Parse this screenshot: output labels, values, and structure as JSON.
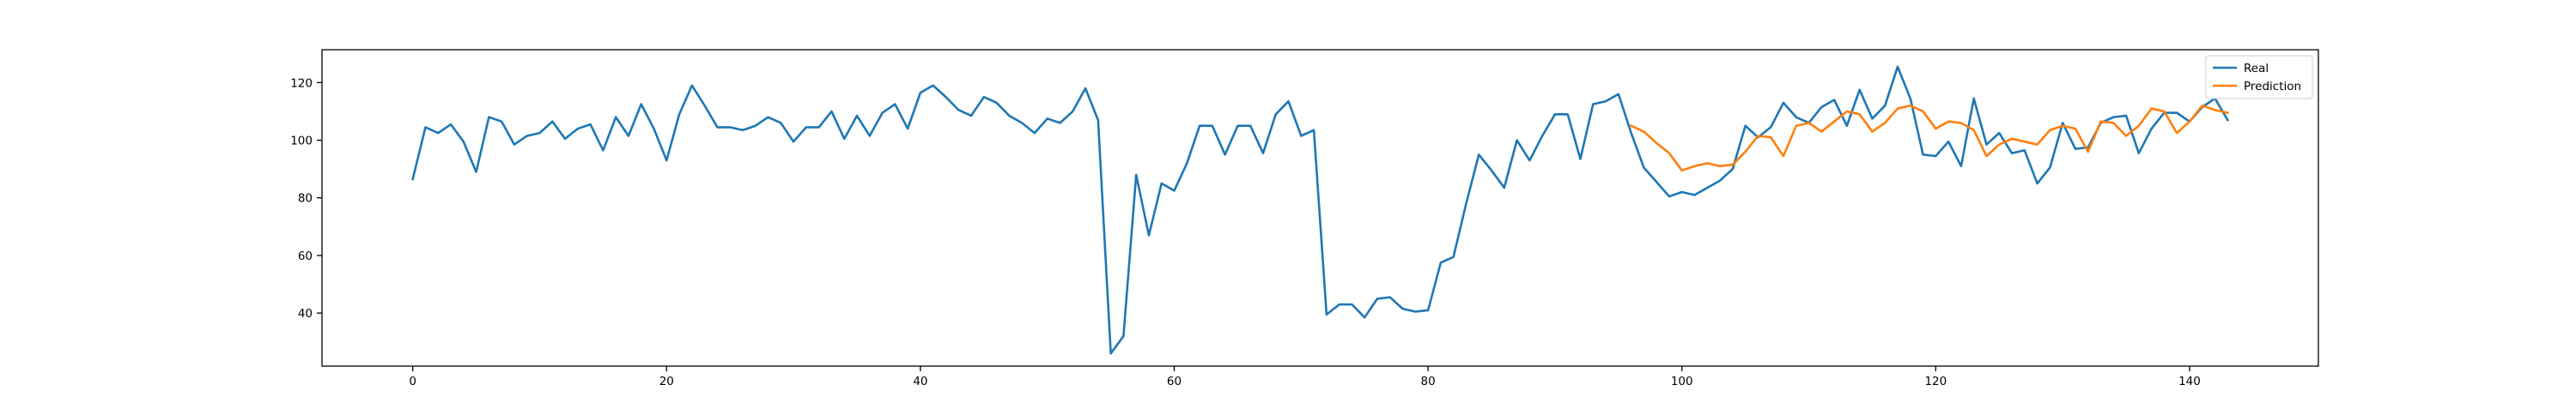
{
  "chart_data": {
    "type": "line",
    "title": "",
    "xlabel": "",
    "ylabel": "",
    "xlim": [
      -7.15,
      150.15
    ],
    "ylim": [
      21.6,
      131.4
    ],
    "xticks": [
      0,
      20,
      40,
      60,
      80,
      100,
      120,
      140
    ],
    "yticks": [
      40,
      60,
      80,
      100,
      120
    ],
    "grid": false,
    "legend_position": "top-right",
    "series": [
      {
        "name": "Real",
        "color": "#1f77b4",
        "x_start": 0,
        "values": [
          86.5,
          104.5,
          102.5,
          105.5,
          99.5,
          89,
          108,
          106.5,
          98.5,
          101.5,
          102.5,
          106.5,
          100.5,
          104,
          105.5,
          96.5,
          108,
          101.5,
          112.5,
          104,
          93,
          109,
          119,
          112,
          104.5,
          104.5,
          103.5,
          105,
          108,
          106,
          99.5,
          104.5,
          104.5,
          110,
          100.5,
          108.5,
          101.5,
          109.5,
          112.5,
          104,
          116.5,
          119,
          115,
          110.5,
          108.5,
          115,
          113,
          108.5,
          106,
          102.5,
          107.5,
          106,
          110,
          118,
          107,
          26,
          32,
          88,
          67,
          85,
          82.5,
          92,
          105,
          105,
          95,
          105,
          105,
          95.5,
          109,
          113.5,
          101.5,
          103.5,
          39.5,
          43,
          43,
          38.5,
          45,
          45.5,
          41.5,
          40.5,
          41,
          57.5,
          59.5,
          78,
          95,
          89.5,
          83.5,
          100,
          93,
          101.5,
          109,
          109,
          93.5,
          112.5,
          113.5,
          116,
          102.5,
          90.5,
          85.5,
          80.5,
          82,
          81,
          83.5,
          86,
          90,
          105,
          101,
          104.5,
          113,
          108,
          106,
          111.5,
          114,
          105,
          117.5,
          107.5,
          112,
          125.5,
          114.5,
          95,
          94.5,
          99.5,
          91,
          114.5,
          98.5,
          102.5,
          95.5,
          96.5,
          85,
          90.5,
          106,
          97,
          97.5,
          106,
          108,
          108.5,
          95.5,
          104,
          109.5,
          109.5,
          106.5,
          111.5,
          114.5,
          107
        ]
      },
      {
        "name": "Prediction",
        "color": "#ff7f0e",
        "x_start": 96,
        "values": [
          105,
          103,
          99,
          95.5,
          89.5,
          91,
          92,
          91,
          91.5,
          96,
          101.5,
          101,
          94.5,
          105,
          106,
          103,
          106.5,
          110,
          109,
          103,
          106,
          111,
          112,
          110,
          104,
          106.5,
          106,
          103.5,
          94.5,
          98.5,
          100.5,
          99.5,
          98.5,
          103.5,
          105,
          104,
          96,
          106.5,
          106,
          101.5,
          105,
          111,
          110,
          102.5,
          106.5,
          112,
          110.5,
          109.5
        ]
      }
    ]
  }
}
